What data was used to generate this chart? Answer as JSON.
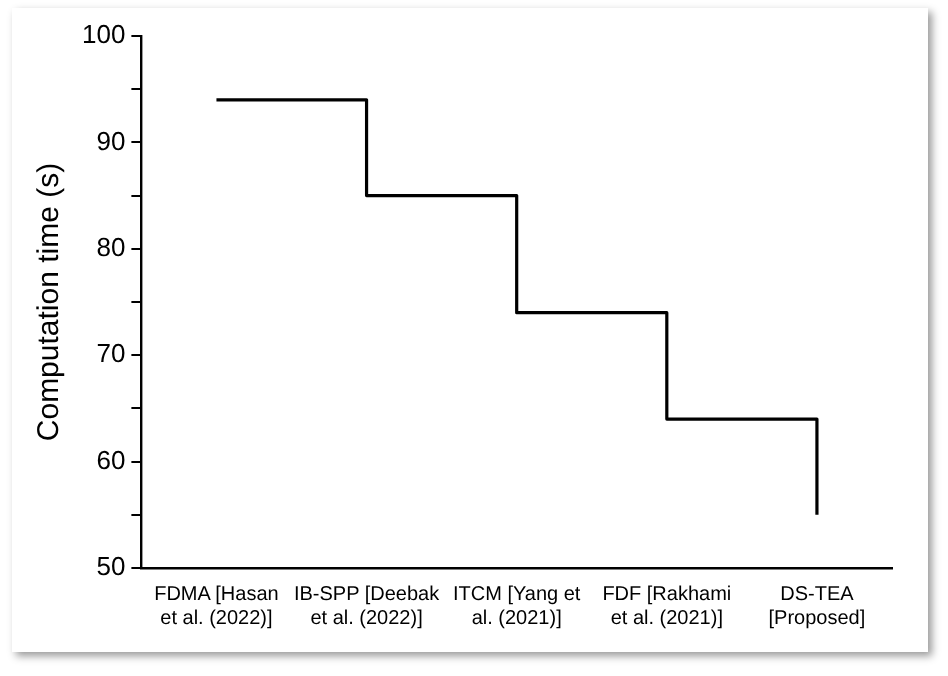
{
  "chart_data": {
    "type": "step",
    "ylabel": "Computation time (s)",
    "categories": [
      "FDMA [Hasan et al. (2022)]",
      "IB-SPP [Deebak et al. (2022)]",
      "ITCM [Yang et al. (2021)]",
      "FDF [Rakhami et al. (2021)]",
      "DS-TEA [Proposed]"
    ],
    "values": [
      94,
      85,
      74,
      64,
      55
    ],
    "color": "#000000",
    "ylim": [
      50,
      100
    ],
    "yticks": [
      50,
      {
        "value": 55,
        "label": null
      },
      60,
      {
        "value": 65,
        "label": null
      },
      70,
      {
        "value": 75,
        "label": null
      },
      80,
      {
        "value": 85,
        "label": null
      },
      90,
      {
        "value": 95,
        "label": null
      },
      100
    ],
    "grid": false,
    "legend": false,
    "marker": "none",
    "line_style": "solid"
  }
}
